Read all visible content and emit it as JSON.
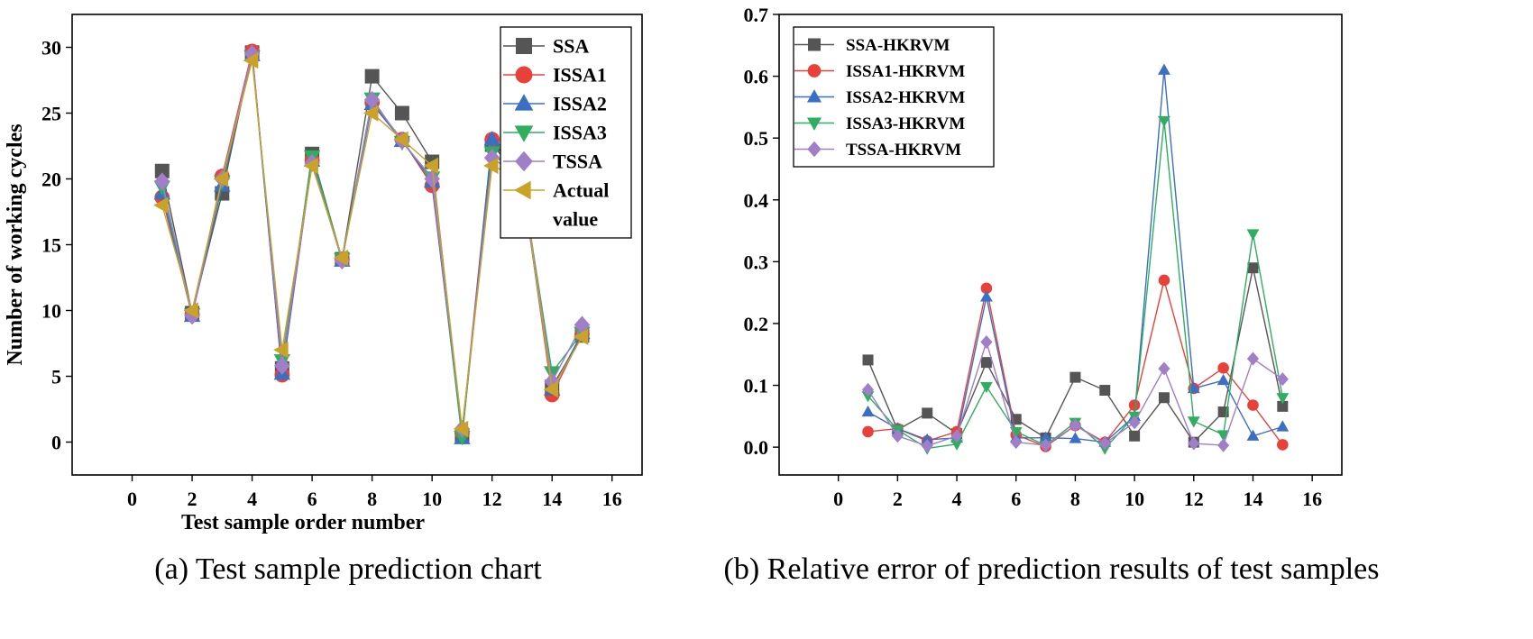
{
  "chart_data": [
    {
      "type": "line",
      "caption": "(a) Test sample prediction chart",
      "xlabel": "Test sample order number",
      "ylabel": "Number of working cycles",
      "xlim": [
        -2,
        17
      ],
      "ylim": [
        -2.5,
        32.5
      ],
      "xticks": [
        0,
        2,
        4,
        6,
        8,
        10,
        12,
        14,
        16
      ],
      "yticks": [
        0,
        5,
        10,
        15,
        20,
        25,
        30
      ],
      "legend_position": "top-right",
      "x": [
        1,
        2,
        3,
        4,
        5,
        6,
        7,
        8,
        9,
        10,
        11,
        12,
        13,
        14,
        15
      ],
      "series": [
        {
          "name": "SSA",
          "color": "#555555",
          "marker": "square",
          "values": [
            20.6,
            9.8,
            18.9,
            29.6,
            5.6,
            21.9,
            13.9,
            27.8,
            25.0,
            21.3,
            0.5,
            22.6,
            20.0,
            4.2,
            8.1
          ]
        },
        {
          "name": "ISSA1",
          "color": "#e8413a",
          "marker": "circle",
          "values": [
            18.6,
            9.7,
            20.2,
            29.7,
            5.1,
            21.4,
            13.9,
            25.8,
            23.0,
            19.5,
            0.7,
            23.0,
            20.0,
            3.6,
            8.2
          ]
        },
        {
          "name": "ISSA2",
          "color": "#3a6fc4",
          "marker": "triangle-up",
          "values": [
            18.9,
            9.6,
            19.5,
            29.4,
            5.2,
            21.4,
            13.8,
            25.7,
            22.9,
            19.8,
            0.3,
            23.0,
            19.8,
            4.0,
            8.3
          ]
        },
        {
          "name": "ISSA3",
          "color": "#2fae60",
          "marker": "triangle-down",
          "values": [
            19.4,
            9.7,
            19.8,
            29.3,
            6.2,
            21.7,
            13.9,
            26.1,
            22.8,
            20.1,
            0.4,
            22.0,
            19.9,
            5.3,
            8.3
          ]
        },
        {
          "name": "TSSA",
          "color": "#a07ec8",
          "marker": "diamond",
          "values": [
            19.8,
            9.6,
            20.0,
            29.5,
            5.8,
            21.2,
            13.8,
            26.0,
            22.9,
            20.0,
            1.0,
            21.6,
            20.0,
            4.6,
            8.9
          ]
        },
        {
          "name": "Actual value",
          "color": "#c9a227",
          "marker": "triangle-left",
          "values": [
            18.0,
            10.0,
            20.0,
            29.0,
            7.0,
            21.0,
            14.0,
            25.0,
            23.0,
            21.0,
            1.0,
            21.0,
            20.0,
            4.0,
            8.0
          ]
        }
      ]
    },
    {
      "type": "line",
      "caption": "(b) Relative error of prediction results of test samples",
      "xlabel": "",
      "ylabel": "",
      "xlim": [
        -2,
        17
      ],
      "ylim": [
        -0.045,
        0.7
      ],
      "xticks": [
        0,
        2,
        4,
        6,
        8,
        10,
        12,
        14,
        16
      ],
      "yticks": [
        0.0,
        0.1,
        0.2,
        0.3,
        0.4,
        0.5,
        0.6,
        0.7
      ],
      "ytick_labels": [
        "0.0",
        "0.1",
        "0.2",
        "0.3",
        "0.4",
        "0.5",
        "0.6",
        "0.7"
      ],
      "legend_position": "top-left",
      "x": [
        1,
        2,
        3,
        4,
        5,
        6,
        7,
        8,
        9,
        10,
        11,
        12,
        13,
        14,
        15
      ],
      "series": [
        {
          "name": "SSA-HKRVM",
          "color": "#555555",
          "marker": "square",
          "values": [
            0.141,
            0.028,
            0.055,
            0.022,
            0.137,
            0.045,
            0.015,
            0.113,
            0.092,
            0.018,
            0.08,
            0.008,
            0.057,
            0.29,
            0.066
          ]
        },
        {
          "name": "ISSA1-HKRVM",
          "color": "#e8413a",
          "marker": "circle",
          "values": [
            0.025,
            0.03,
            0.01,
            0.025,
            0.257,
            0.02,
            0.001,
            0.035,
            0.008,
            0.068,
            0.27,
            0.095,
            0.128,
            0.068,
            0.004
          ]
        },
        {
          "name": "ISSA2-HKRVM",
          "color": "#3a6fc4",
          "marker": "triangle-up",
          "values": [
            0.057,
            0.03,
            0.012,
            0.015,
            0.243,
            0.015,
            0.015,
            0.014,
            0.008,
            0.05,
            0.61,
            0.095,
            0.108,
            0.018,
            0.033
          ]
        },
        {
          "name": "ISSA3-HKRVM",
          "color": "#2fae60",
          "marker": "triangle-down",
          "values": [
            0.083,
            0.028,
            -0.002,
            0.005,
            0.098,
            0.025,
            0.003,
            0.04,
            -0.002,
            0.05,
            0.528,
            0.042,
            0.02,
            0.345,
            0.08
          ]
        },
        {
          "name": "TSSA-HKRVM",
          "color": "#a07ec8",
          "marker": "diamond",
          "values": [
            0.093,
            0.018,
            0.002,
            0.018,
            0.17,
            0.008,
            0.003,
            0.035,
            0.006,
            0.04,
            0.127,
            0.006,
            0.003,
            0.143,
            0.11
          ]
        }
      ]
    }
  ]
}
